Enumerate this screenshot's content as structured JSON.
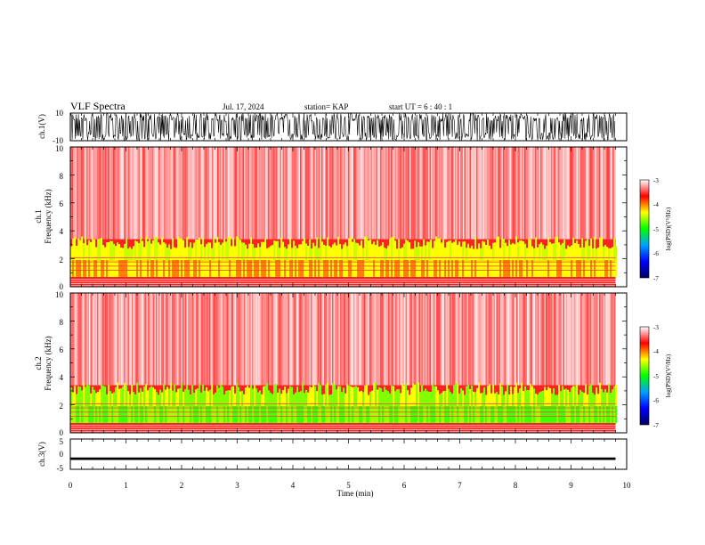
{
  "header": {
    "title": "VLF Spectra",
    "date": "Jul. 17, 2024",
    "station": "station= KAP",
    "start": "start UT =  6 : 40 : 1"
  },
  "chart_data": [
    {
      "type": "line",
      "id": "ch1-waveform",
      "ylabel": "ch.1(V)",
      "ylim": [
        -10,
        10
      ],
      "yticks": [
        "10",
        "-10"
      ],
      "xlim": [
        0,
        10
      ],
      "description_of_data": "dense noisy waveform saturating roughly between -10 and 10 V from 0 to about 9.8 min"
    },
    {
      "type": "heatmap",
      "id": "ch1-spectrogram",
      "ylabel": "ch.1\nFrequency (kHz)",
      "ylim": [
        0,
        10
      ],
      "yticks": [
        "0",
        "2",
        "4",
        "6",
        "8",
        "10"
      ],
      "xlim": [
        0,
        10
      ],
      "data_end_min": 9.8,
      "colorbar": {
        "label": "log(PSD)(V²/Hz)",
        "range": [
          -7,
          -3
        ],
        "ticks": [
          "-3",
          "-4",
          "-5",
          "-6",
          "-7"
        ],
        "colors": [
          "#000060",
          "#0000ff",
          "#00a0ff",
          "#00ff00",
          "#ffff00",
          "#ff0000",
          "#ffffff"
        ]
      },
      "bands": [
        {
          "from_khz": 0,
          "to_khz": 0.6,
          "level": "red with horizontal lines"
        },
        {
          "from_khz": 0.6,
          "to_khz": 3.2,
          "level": "yellow-green"
        },
        {
          "from_khz": 3.2,
          "to_khz": 10,
          "level": "red-white"
        }
      ]
    },
    {
      "type": "heatmap",
      "id": "ch2-spectrogram",
      "ylabel": "ch.2\nFrequency (kHz)",
      "ylim": [
        0,
        10
      ],
      "yticks": [
        "0",
        "2",
        "4",
        "6",
        "8",
        "10"
      ],
      "xlim": [
        0,
        10
      ],
      "data_end_min": 9.8,
      "colorbar": {
        "label": "log(PSD)(V²/Hz)",
        "range": [
          -7,
          -3
        ],
        "ticks": [
          "-3",
          "-4",
          "-5",
          "-6",
          "-7"
        ],
        "colors": [
          "#000060",
          "#0000ff",
          "#00a0ff",
          "#00ff00",
          "#ffff00",
          "#ff0000",
          "#ffffff"
        ]
      },
      "bands": [
        {
          "from_khz": 0,
          "to_khz": 0.6,
          "level": "red with horizontal lines"
        },
        {
          "from_khz": 0.6,
          "to_khz": 3.2,
          "level": "green-yellow"
        },
        {
          "from_khz": 3.2,
          "to_khz": 10,
          "level": "red-white"
        }
      ]
    },
    {
      "type": "line",
      "id": "ch3-waveform",
      "ylabel": "ch.3(V)",
      "ylim": [
        -5,
        5
      ],
      "yticks": [
        "5",
        "0",
        "-5"
      ],
      "xlim": [
        0,
        10
      ],
      "values": [
        {
          "x_min": 0,
          "x_max": 9.8,
          "y_center": -1.5,
          "y_halfwidth": 0.4
        }
      ],
      "xlabel": "Time (min)",
      "xticks": [
        "0",
        "1",
        "2",
        "3",
        "4",
        "5",
        "6",
        "7",
        "8",
        "9",
        "10"
      ]
    }
  ]
}
